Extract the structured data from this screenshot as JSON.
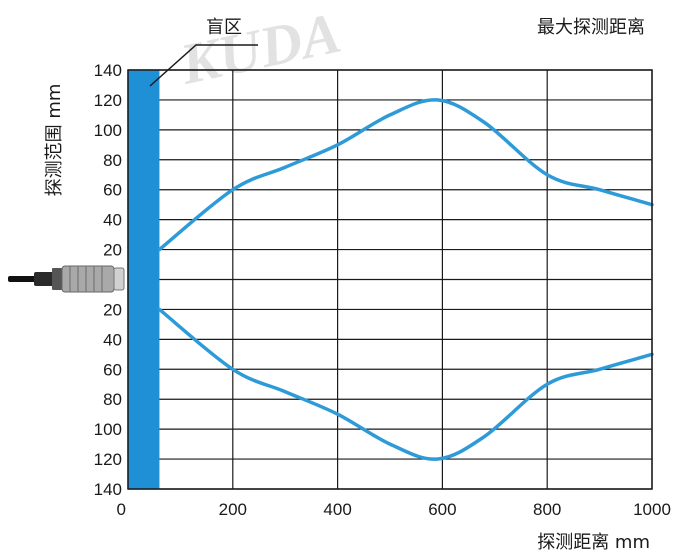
{
  "chart_data": {
    "type": "line",
    "title": "",
    "subtitle": "",
    "xlabel": "探测距离 mm",
    "ylabel": "探测范围 mm",
    "distance_label": "最大探测距离",
    "blind_zone_label": "盲区",
    "watermark": "KUDA",
    "blind_zone": [
      0,
      60
    ],
    "xlim": [
      0,
      1000
    ],
    "ylim": [
      -140,
      140
    ],
    "x_ticks": [
      "0",
      "200",
      "400",
      "600",
      "800",
      "1000"
    ],
    "y_ticks": [
      "140",
      "120",
      "100",
      "80",
      "60",
      "40",
      "20",
      "",
      "20",
      "40",
      "60",
      "80",
      "100",
      "120",
      "140"
    ],
    "grid": true,
    "colors": {
      "curve": "#2e9bd8",
      "blind_zone": "#1f8fd6",
      "grid": "#1a1a1a"
    },
    "icons": {
      "sensor": "proximity-sensor-icon"
    },
    "series": [
      {
        "x": [
          60,
          200,
          300,
          400,
          500,
          590,
          680,
          800,
          900,
          1000
        ],
        "y": [
          20,
          60,
          75,
          90,
          110,
          120,
          105,
          70,
          60,
          50
        ]
      },
      {
        "x": [
          60,
          200,
          300,
          400,
          500,
          590,
          680,
          800,
          900,
          1000
        ],
        "y": [
          -20,
          -60,
          -75,
          -90,
          -110,
          -120,
          -105,
          -70,
          -60,
          -50
        ]
      }
    ]
  }
}
